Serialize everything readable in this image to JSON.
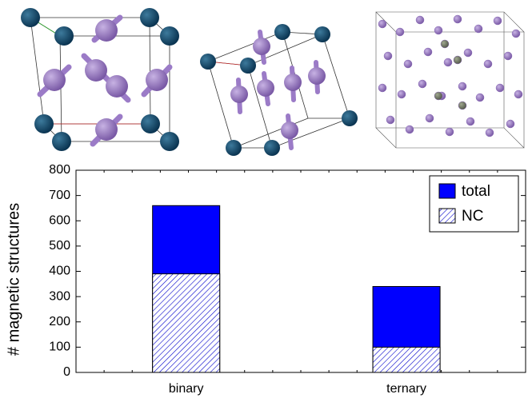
{
  "chart_data": {
    "type": "bar",
    "ylabel": "# magnetic structures",
    "categories": [
      "binary",
      "ternary"
    ],
    "series": [
      {
        "name": "total",
        "color": "#0000ff",
        "values": [
          660,
          340
        ]
      },
      {
        "name": "NC",
        "color": "#0000ff",
        "hatch": true,
        "values": [
          390,
          100
        ]
      }
    ],
    "ylim": [
      0,
      800
    ],
    "yticks": [
      0,
      100,
      200,
      300,
      400,
      500,
      600,
      700,
      800
    ],
    "legend": "upper right",
    "overlap": true
  }
}
